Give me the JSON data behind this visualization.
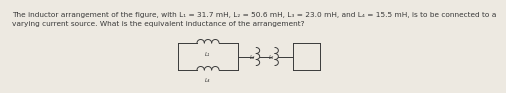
{
  "text_line1": "The inductor arrangement of the figure, with L₁ = 31.7 mH, L₂ = 50.6 mH, L₃ = 23.0 mH, and L₄ = 15.5 mH, is to be connected to a",
  "text_line2": "varying current source. What is the equivalent inductance of the arrangement?",
  "text_fontsize": 5.3,
  "text_color": "#3a3a3a",
  "bg_color": "#ede9e1",
  "circuit_color": "#3a3a3a",
  "label_L1": "L₁",
  "label_L2": "L₂",
  "label_L3": "L₃",
  "label_L4": "L₄",
  "label_fontsize": 4.0
}
